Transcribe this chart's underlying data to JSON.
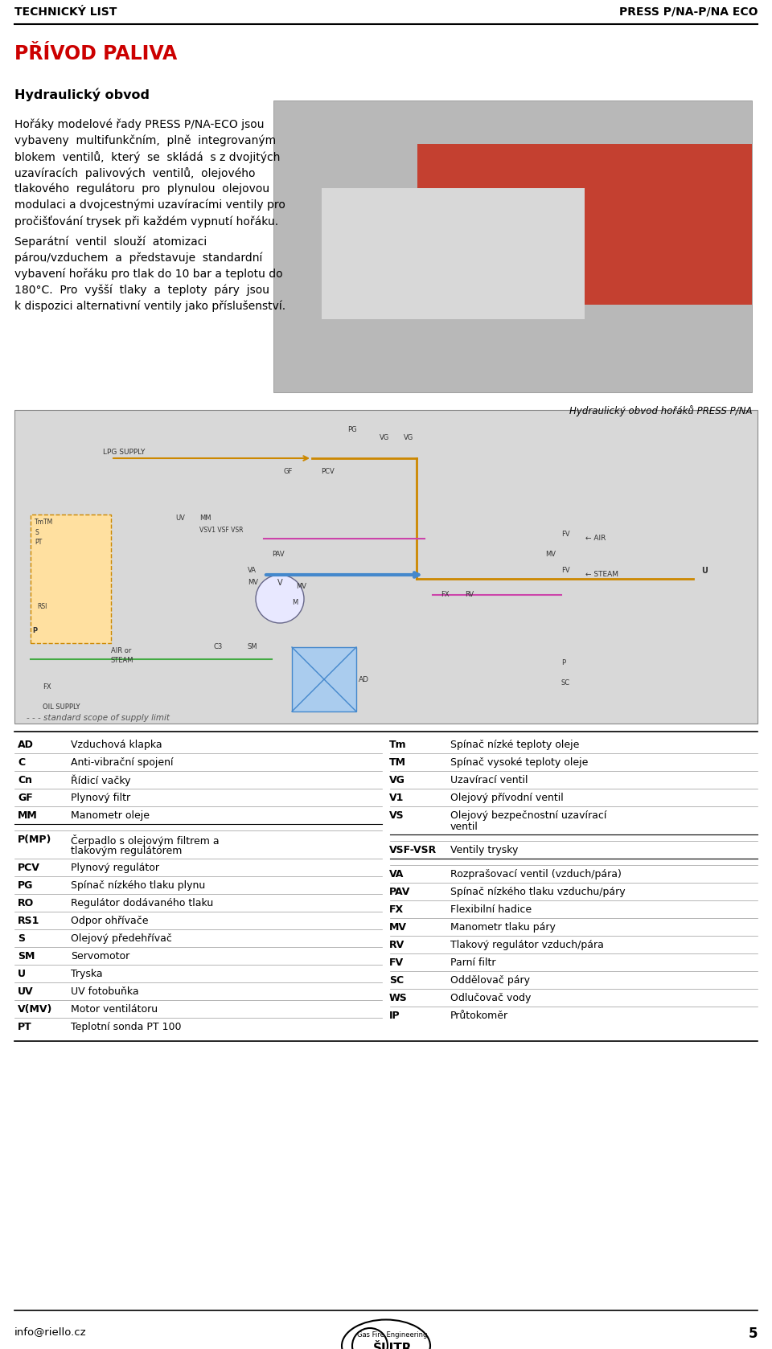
{
  "header_left": "TECHNICKÝ LIST",
  "header_right": "PRESS P/NA-P/NA ECO",
  "section_title": "PŘÍVOD PALIVA",
  "subsection": "Hydraulický obvod",
  "para1_lines": [
    "Hořáky modelové řady PRESS P/NA-ECO jsou",
    "vybaveny  multifunkčním,  plně  integrovaným",
    "blokem  ventilů,  který  se  skládá  s z dvojitých",
    "uzavíracích  palivových  ventilů,  olejového",
    "tlakového  regulátoru  pro  plynulou  olejovou",
    "modulaci a dvojcestnými uzavíracími ventily pro",
    "pročišťování trysek při každém vypnutí hořáku."
  ],
  "para2_lines": [
    "Separátní  ventil  slouží  atomizaci",
    "párou/vzduchem  a  představuje  standardní",
    "vybavení hořáku pro tlak do 10 bar a teplotu do",
    "180°C.  Pro  vyšší  tlaky  a  teploty  páry  jsou",
    "k dispozici alternativní ventily jako příslušenství."
  ],
  "photo_caption": "Hydraulický obvod hořáků PRESS P/NA",
  "footer_email": "info@riello.cz",
  "footer_page": "5",
  "footer_logo_text": "ŠLITR",
  "footer_logo_sub": "Gas Fire Engineering",
  "diagram_label": "- - - standard scope of supply limit",
  "table_left": [
    [
      "AD",
      "Vzduchová klapka"
    ],
    [
      "C",
      "Anti-vibrační spojení"
    ],
    [
      "Cn",
      "Řídicí vačky"
    ],
    [
      "GF",
      "Plynový filtr"
    ],
    [
      "MM",
      "Manometr oleje"
    ],
    [
      "",
      ""
    ],
    [
      "P(MP)",
      "Čerpadlo s olejovým filtrem a",
      "tlakovým regulátorem"
    ],
    [
      "PCV",
      "Plynový regulátor"
    ],
    [
      "PG",
      "Spínač nízkého tlaku plynu"
    ],
    [
      "RO",
      "Regulátor dodávaného tlaku"
    ],
    [
      "RS1",
      "Odpor ohřívače"
    ],
    [
      "S",
      "Olejový předehřívač"
    ],
    [
      "SM",
      "Servomotor"
    ],
    [
      "U",
      "Tryska"
    ],
    [
      "UV",
      "UV fotobuňka"
    ],
    [
      "V(MV)",
      "Motor ventilátoru"
    ],
    [
      "PT",
      "Teplotní sonda PT 100"
    ]
  ],
  "table_right": [
    [
      "Tm",
      "Spínač nízké teploty oleje"
    ],
    [
      "TM",
      "Spínač vysoké teploty oleje"
    ],
    [
      "VG",
      "Uzavírací ventil"
    ],
    [
      "V1",
      "Olejový přívodní ventil"
    ],
    [
      "VS",
      "Olejový bezpečnostní uzavírací",
      "ventil"
    ],
    [
      "",
      ""
    ],
    [
      "VSF-VSR",
      "Ventily trysky"
    ],
    [
      "",
      ""
    ],
    [
      "VA",
      "Rozprašovací ventil (vzduch/pára)"
    ],
    [
      "PAV",
      "Spínač nízkého tlaku vzduchu/páry"
    ],
    [
      "FX",
      "Flexibilní hadice"
    ],
    [
      "MV",
      "Manometr tlaku páry"
    ],
    [
      "RV",
      "Tlakový regulátor vzduch/pára"
    ],
    [
      "FV",
      "Parní filtr"
    ],
    [
      "SC",
      "Oddělovač páry"
    ],
    [
      "WS",
      "Odlučovač vody"
    ],
    [
      "IP",
      "Průtokoměr"
    ]
  ],
  "bg_color": "#ffffff",
  "text_color": "#000000",
  "header_color": "#000000",
  "section_color": "#cc0000",
  "separator_color": "#000000",
  "row_sep_color": "#999999",
  "header_line_color": "#000000"
}
